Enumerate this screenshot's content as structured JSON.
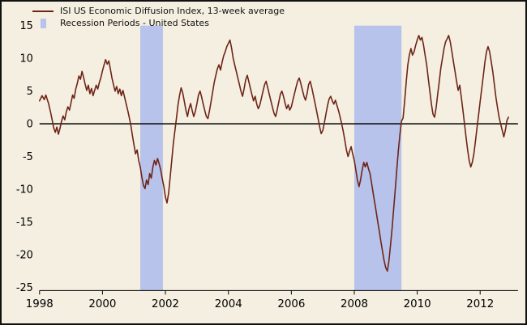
{
  "chart_data": {
    "type": "line",
    "title": "",
    "legend": [
      {
        "label": "ISI US Economic Diffusion Index, 13-week average",
        "swatch": "line-icon"
      },
      {
        "label": "Recession Periods - United States",
        "swatch": "band-icon"
      }
    ],
    "xlabel": "",
    "ylabel": "",
    "xlim": [
      1998,
      2013.2
    ],
    "ylim": [
      -25,
      15
    ],
    "yticks": [
      15,
      10,
      5,
      0,
      -5,
      -10,
      -15,
      -20,
      -25
    ],
    "xticks": [
      1998,
      2000,
      2002,
      2004,
      2006,
      2008,
      2010,
      2012
    ],
    "grid": false,
    "legend_position": "top-left",
    "colors": {
      "background": "#f4efe0",
      "band": "#b7c3ea",
      "line": "#6e2318",
      "axis": "#000000"
    },
    "recession_bands": [
      [
        2001.2,
        2001.92
      ],
      [
        2008.0,
        2009.5
      ]
    ],
    "series": [
      {
        "name": "ISI US Economic Diffusion Index, 13-week average",
        "color": "#6e2318",
        "points": [
          [
            1998.0,
            3.5
          ],
          [
            1998.08,
            4.3
          ],
          [
            1998.15,
            3.7
          ],
          [
            1998.2,
            4.4
          ],
          [
            1998.28,
            3.2
          ],
          [
            1998.35,
            1.8
          ],
          [
            1998.4,
            0.6
          ],
          [
            1998.45,
            -0.6
          ],
          [
            1998.5,
            -1.3
          ],
          [
            1998.55,
            -0.5
          ],
          [
            1998.6,
            -1.6
          ],
          [
            1998.65,
            -0.7
          ],
          [
            1998.7,
            0.4
          ],
          [
            1998.75,
            1.2
          ],
          [
            1998.8,
            0.6
          ],
          [
            1998.85,
            1.8
          ],
          [
            1998.9,
            2.6
          ],
          [
            1998.95,
            2.1
          ],
          [
            1999.0,
            3.2
          ],
          [
            1999.05,
            4.4
          ],
          [
            1999.1,
            3.9
          ],
          [
            1999.15,
            5.3
          ],
          [
            1999.2,
            6.2
          ],
          [
            1999.25,
            7.3
          ],
          [
            1999.3,
            6.8
          ],
          [
            1999.35,
            8.0
          ],
          [
            1999.4,
            7.1
          ],
          [
            1999.45,
            6.0
          ],
          [
            1999.5,
            5.1
          ],
          [
            1999.55,
            5.9
          ],
          [
            1999.6,
            4.6
          ],
          [
            1999.65,
            5.4
          ],
          [
            1999.7,
            4.3
          ],
          [
            1999.75,
            5.1
          ],
          [
            1999.8,
            5.9
          ],
          [
            1999.85,
            5.3
          ],
          [
            1999.9,
            6.3
          ],
          [
            1999.95,
            7.1
          ],
          [
            2000.0,
            8.1
          ],
          [
            2000.05,
            9.0
          ],
          [
            2000.1,
            9.8
          ],
          [
            2000.15,
            9.1
          ],
          [
            2000.2,
            9.6
          ],
          [
            2000.25,
            8.4
          ],
          [
            2000.3,
            7.0
          ],
          [
            2000.35,
            6.0
          ],
          [
            2000.4,
            5.0
          ],
          [
            2000.45,
            5.7
          ],
          [
            2000.5,
            4.6
          ],
          [
            2000.55,
            5.3
          ],
          [
            2000.6,
            4.3
          ],
          [
            2000.65,
            5.1
          ],
          [
            2000.7,
            4.1
          ],
          [
            2000.75,
            3.1
          ],
          [
            2000.8,
            2.1
          ],
          [
            2000.85,
            1.0
          ],
          [
            2000.9,
            -0.2
          ],
          [
            2000.95,
            -1.8
          ],
          [
            2001.0,
            -3.2
          ],
          [
            2001.05,
            -4.6
          ],
          [
            2001.1,
            -4.0
          ],
          [
            2001.15,
            -5.6
          ],
          [
            2001.2,
            -6.6
          ],
          [
            2001.25,
            -8.1
          ],
          [
            2001.3,
            -9.4
          ],
          [
            2001.35,
            -9.9
          ],
          [
            2001.4,
            -8.6
          ],
          [
            2001.45,
            -9.3
          ],
          [
            2001.5,
            -7.6
          ],
          [
            2001.55,
            -8.3
          ],
          [
            2001.6,
            -6.6
          ],
          [
            2001.65,
            -5.6
          ],
          [
            2001.7,
            -6.3
          ],
          [
            2001.75,
            -5.3
          ],
          [
            2001.8,
            -6.1
          ],
          [
            2001.85,
            -7.1
          ],
          [
            2001.9,
            -8.4
          ],
          [
            2001.95,
            -9.6
          ],
          [
            2002.0,
            -11.2
          ],
          [
            2002.05,
            -12.1
          ],
          [
            2002.1,
            -10.6
          ],
          [
            2002.15,
            -8.2
          ],
          [
            2002.2,
            -5.6
          ],
          [
            2002.25,
            -3.1
          ],
          [
            2002.3,
            -1.1
          ],
          [
            2002.35,
            0.9
          ],
          [
            2002.4,
            2.9
          ],
          [
            2002.45,
            4.4
          ],
          [
            2002.5,
            5.5
          ],
          [
            2002.55,
            4.7
          ],
          [
            2002.6,
            3.4
          ],
          [
            2002.65,
            2.1
          ],
          [
            2002.7,
            1.1
          ],
          [
            2002.75,
            2.3
          ],
          [
            2002.8,
            3.1
          ],
          [
            2002.85,
            2.0
          ],
          [
            2002.9,
            1.1
          ],
          [
            2002.95,
            1.9
          ],
          [
            2003.0,
            3.1
          ],
          [
            2003.05,
            4.4
          ],
          [
            2003.1,
            5.0
          ],
          [
            2003.15,
            4.1
          ],
          [
            2003.2,
            3.0
          ],
          [
            2003.25,
            2.0
          ],
          [
            2003.3,
            1.1
          ],
          [
            2003.35,
            0.8
          ],
          [
            2003.4,
            2.0
          ],
          [
            2003.45,
            3.4
          ],
          [
            2003.5,
            4.9
          ],
          [
            2003.55,
            6.3
          ],
          [
            2003.6,
            7.4
          ],
          [
            2003.65,
            8.4
          ],
          [
            2003.7,
            9.0
          ],
          [
            2003.75,
            8.2
          ],
          [
            2003.8,
            9.4
          ],
          [
            2003.85,
            10.4
          ],
          [
            2003.9,
            11.0
          ],
          [
            2003.95,
            11.8
          ],
          [
            2004.0,
            12.3
          ],
          [
            2004.05,
            12.8
          ],
          [
            2004.1,
            11.6
          ],
          [
            2004.15,
            10.1
          ],
          [
            2004.2,
            9.0
          ],
          [
            2004.25,
            8.0
          ],
          [
            2004.3,
            7.0
          ],
          [
            2004.35,
            6.0
          ],
          [
            2004.4,
            5.0
          ],
          [
            2004.45,
            4.2
          ],
          [
            2004.5,
            5.4
          ],
          [
            2004.55,
            6.7
          ],
          [
            2004.6,
            7.4
          ],
          [
            2004.65,
            6.4
          ],
          [
            2004.7,
            5.4
          ],
          [
            2004.75,
            4.4
          ],
          [
            2004.8,
            3.5
          ],
          [
            2004.85,
            4.2
          ],
          [
            2004.9,
            3.0
          ],
          [
            2004.95,
            2.3
          ],
          [
            2005.0,
            2.9
          ],
          [
            2005.05,
            3.9
          ],
          [
            2005.1,
            5.0
          ],
          [
            2005.15,
            6.0
          ],
          [
            2005.2,
            6.5
          ],
          [
            2005.25,
            5.5
          ],
          [
            2005.3,
            4.5
          ],
          [
            2005.35,
            3.5
          ],
          [
            2005.4,
            2.5
          ],
          [
            2005.45,
            1.6
          ],
          [
            2005.5,
            1.1
          ],
          [
            2005.55,
            2.1
          ],
          [
            2005.6,
            3.3
          ],
          [
            2005.65,
            4.5
          ],
          [
            2005.7,
            5.0
          ],
          [
            2005.75,
            4.2
          ],
          [
            2005.8,
            3.2
          ],
          [
            2005.85,
            2.3
          ],
          [
            2005.9,
            2.9
          ],
          [
            2005.95,
            2.1
          ],
          [
            2006.0,
            2.6
          ],
          [
            2006.05,
            3.6
          ],
          [
            2006.1,
            4.6
          ],
          [
            2006.15,
            5.6
          ],
          [
            2006.2,
            6.5
          ],
          [
            2006.25,
            7.0
          ],
          [
            2006.3,
            6.2
          ],
          [
            2006.35,
            5.2
          ],
          [
            2006.4,
            4.2
          ],
          [
            2006.45,
            3.6
          ],
          [
            2006.5,
            4.6
          ],
          [
            2006.55,
            6.0
          ],
          [
            2006.6,
            6.5
          ],
          [
            2006.65,
            5.5
          ],
          [
            2006.7,
            4.4
          ],
          [
            2006.75,
            3.2
          ],
          [
            2006.8,
            2.0
          ],
          [
            2006.85,
            0.8
          ],
          [
            2006.9,
            -0.5
          ],
          [
            2006.95,
            -1.5
          ],
          [
            2007.0,
            -1.0
          ],
          [
            2007.05,
            0.2
          ],
          [
            2007.1,
            1.5
          ],
          [
            2007.15,
            2.8
          ],
          [
            2007.2,
            3.8
          ],
          [
            2007.25,
            4.2
          ],
          [
            2007.3,
            3.5
          ],
          [
            2007.35,
            3.0
          ],
          [
            2007.4,
            3.6
          ],
          [
            2007.45,
            2.8
          ],
          [
            2007.5,
            2.0
          ],
          [
            2007.55,
            1.0
          ],
          [
            2007.6,
            0.0
          ],
          [
            2007.65,
            -1.2
          ],
          [
            2007.7,
            -2.5
          ],
          [
            2007.75,
            -4.0
          ],
          [
            2007.8,
            -5.0
          ],
          [
            2007.85,
            -4.2
          ],
          [
            2007.9,
            -3.5
          ],
          [
            2007.95,
            -4.6
          ],
          [
            2008.0,
            -5.6
          ],
          [
            2008.05,
            -7.1
          ],
          [
            2008.1,
            -8.6
          ],
          [
            2008.15,
            -9.6
          ],
          [
            2008.2,
            -8.6
          ],
          [
            2008.25,
            -7.1
          ],
          [
            2008.3,
            -5.9
          ],
          [
            2008.35,
            -6.6
          ],
          [
            2008.4,
            -5.9
          ],
          [
            2008.45,
            -6.9
          ],
          [
            2008.5,
            -7.6
          ],
          [
            2008.55,
            -9.1
          ],
          [
            2008.6,
            -10.6
          ],
          [
            2008.65,
            -12.1
          ],
          [
            2008.7,
            -13.6
          ],
          [
            2008.75,
            -15.1
          ],
          [
            2008.8,
            -16.6
          ],
          [
            2008.85,
            -18.1
          ],
          [
            2008.9,
            -19.6
          ],
          [
            2008.95,
            -21.0
          ],
          [
            2009.0,
            -22.0
          ],
          [
            2009.05,
            -22.5
          ],
          [
            2009.1,
            -21.0
          ],
          [
            2009.15,
            -18.6
          ],
          [
            2009.2,
            -16.0
          ],
          [
            2009.25,
            -13.1
          ],
          [
            2009.3,
            -10.1
          ],
          [
            2009.35,
            -7.1
          ],
          [
            2009.4,
            -4.1
          ],
          [
            2009.45,
            -1.6
          ],
          [
            2009.5,
            0.4
          ],
          [
            2009.55,
            0.9
          ],
          [
            2009.6,
            3.4
          ],
          [
            2009.65,
            6.4
          ],
          [
            2009.7,
            9.0
          ],
          [
            2009.75,
            10.5
          ],
          [
            2009.8,
            11.5
          ],
          [
            2009.85,
            10.5
          ],
          [
            2009.9,
            11.0
          ],
          [
            2009.95,
            12.0
          ],
          [
            2010.0,
            12.8
          ],
          [
            2010.05,
            13.5
          ],
          [
            2010.1,
            12.8
          ],
          [
            2010.15,
            13.2
          ],
          [
            2010.2,
            12.0
          ],
          [
            2010.25,
            10.5
          ],
          [
            2010.3,
            9.0
          ],
          [
            2010.35,
            7.0
          ],
          [
            2010.4,
            5.0
          ],
          [
            2010.45,
            3.0
          ],
          [
            2010.5,
            1.5
          ],
          [
            2010.55,
            1.0
          ],
          [
            2010.6,
            2.5
          ],
          [
            2010.65,
            4.5
          ],
          [
            2010.7,
            6.5
          ],
          [
            2010.75,
            8.5
          ],
          [
            2010.8,
            10.0
          ],
          [
            2010.85,
            11.5
          ],
          [
            2010.9,
            12.5
          ],
          [
            2010.95,
            13.0
          ],
          [
            2011.0,
            13.5
          ],
          [
            2011.05,
            12.5
          ],
          [
            2011.1,
            11.0
          ],
          [
            2011.15,
            9.5
          ],
          [
            2011.2,
            8.0
          ],
          [
            2011.25,
            6.5
          ],
          [
            2011.3,
            5.1
          ],
          [
            2011.35,
            5.9
          ],
          [
            2011.4,
            4.1
          ],
          [
            2011.45,
            2.1
          ],
          [
            2011.5,
            0.1
          ],
          [
            2011.55,
            -2.0
          ],
          [
            2011.6,
            -4.0
          ],
          [
            2011.65,
            -5.6
          ],
          [
            2011.7,
            -6.6
          ],
          [
            2011.75,
            -5.9
          ],
          [
            2011.8,
            -4.6
          ],
          [
            2011.85,
            -2.6
          ],
          [
            2011.9,
            -0.6
          ],
          [
            2011.95,
            1.4
          ],
          [
            2012.0,
            3.4
          ],
          [
            2012.05,
            5.4
          ],
          [
            2012.1,
            7.4
          ],
          [
            2012.15,
            9.4
          ],
          [
            2012.2,
            11.0
          ],
          [
            2012.25,
            11.8
          ],
          [
            2012.3,
            11.0
          ],
          [
            2012.35,
            9.5
          ],
          [
            2012.4,
            8.0
          ],
          [
            2012.45,
            6.0
          ],
          [
            2012.5,
            4.0
          ],
          [
            2012.55,
            2.5
          ],
          [
            2012.6,
            1.0
          ],
          [
            2012.65,
            0.0
          ],
          [
            2012.7,
            -1.0
          ],
          [
            2012.75,
            -2.0
          ],
          [
            2012.8,
            -1.0
          ],
          [
            2012.85,
            0.5
          ],
          [
            2012.9,
            1.0
          ]
        ]
      }
    ]
  }
}
